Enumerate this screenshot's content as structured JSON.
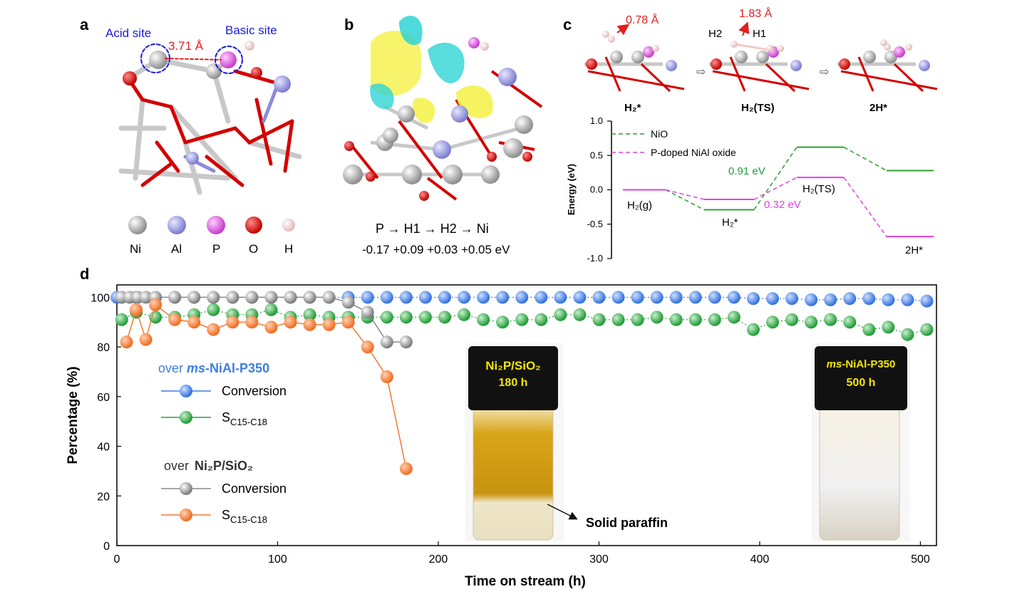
{
  "panels": {
    "a": {
      "letter": "a",
      "acid_site": "Acid site",
      "basic_site": "Basic site",
      "distance": "3.71 Å",
      "legend": [
        "Ni",
        "Al",
        "P",
        "O",
        "H"
      ],
      "legend_colors": [
        "#9a9a9a",
        "#8c8cd8",
        "#d24fd8",
        "#d40000",
        "#f2c9c9"
      ]
    },
    "b": {
      "letter": "b",
      "path": "P → H1 → H2 → Ni",
      "charges": "-0.17 +0.09 +0.03 +0.05 eV"
    },
    "c": {
      "letter": "c",
      "dist1": "0.78 Å",
      "dist2": "1.83 Å",
      "h2_label": "H2",
      "h1_label": "H1",
      "states": [
        "H₂*",
        "H₂(TS)",
        "2H*"
      ],
      "ylabel": "Energy (eV)",
      "yticks": [
        "1.0",
        "0.5",
        "0.0",
        "-0.5",
        "-1.0"
      ],
      "legend": [
        "NiO",
        "P-doped NiAl oxide"
      ],
      "barrier_nio": "0.91 eV",
      "barrier_p": "0.32 eV",
      "state_labels": [
        "H₂(g)",
        "H₂*",
        "H₂(TS)",
        "2H*"
      ]
    },
    "d": {
      "letter": "d",
      "legend_group1": "over ms-NiAl-P350",
      "legend_group1_prefix": "over ",
      "legend_group1_name": "-NiAl-P350",
      "legend_group1_italic": "ms",
      "conversion": "Conversion",
      "selectivity": "S",
      "selectivity_sub": "C15-C18",
      "legend_group2_prefix": "over",
      "legend_group2_name": "Ni₂P/SiO₂",
      "photo1_line1": "Ni₂P/SiO₂",
      "photo1_line2": "180 h",
      "photo2_italic": "ms",
      "photo2_line1": "-NiAl-P350",
      "photo2_line2": "500 h",
      "annotation": "Solid paraffin"
    }
  },
  "chart_data": [
    {
      "panel": "c",
      "type": "line",
      "ylabel": "Energy (eV)",
      "ylim": [
        -1.0,
        1.0
      ],
      "categories": [
        "H₂(g)",
        "H₂*",
        "H₂(TS)",
        "2H*"
      ],
      "series": [
        {
          "name": "NiO",
          "values": [
            0.0,
            -0.29,
            0.62,
            0.28
          ],
          "color": "#2ca02c"
        },
        {
          "name": "P-doped NiAl oxide",
          "values": [
            0.0,
            -0.14,
            0.18,
            -0.68
          ],
          "color": "#e040e0"
        }
      ]
    },
    {
      "panel": "d",
      "type": "scatter",
      "xlabel": "Time on stream (h)",
      "ylabel": "Percentage (%)",
      "xlim": [
        0,
        510
      ],
      "ylim": [
        0,
        105
      ],
      "xticks": [
        0,
        100,
        200,
        300,
        400,
        500
      ],
      "yticks": [
        0,
        20,
        40,
        60,
        80,
        100
      ],
      "series": [
        {
          "name": "Conversion",
          "group": "ms-NiAl-P350",
          "color": "#3d7ee0",
          "x": [
            0,
            12,
            24,
            36,
            48,
            60,
            72,
            84,
            96,
            108,
            120,
            132,
            144,
            156,
            168,
            180,
            192,
            204,
            216,
            228,
            240,
            252,
            264,
            276,
            288,
            300,
            312,
            324,
            336,
            348,
            360,
            372,
            384,
            396,
            408,
            420,
            432,
            444,
            456,
            468,
            480,
            492,
            504
          ],
          "y": [
            100,
            100,
            100,
            100,
            100,
            100,
            100,
            100,
            100,
            100,
            100,
            100,
            100,
            100,
            100,
            100,
            100,
            100,
            100,
            100,
            100,
            100,
            100,
            100,
            100,
            100,
            100,
            100,
            100,
            100,
            100,
            100,
            100,
            99.5,
            99.5,
            99.5,
            99,
            99,
            99.5,
            99.5,
            99,
            99,
            98.5
          ]
        },
        {
          "name": "SC15-C18",
          "group": "ms-NiAl-P350",
          "color": "#22a03a",
          "x": [
            3,
            12,
            24,
            36,
            48,
            60,
            72,
            84,
            96,
            108,
            120,
            132,
            144,
            156,
            168,
            180,
            192,
            204,
            216,
            228,
            240,
            252,
            264,
            276,
            288,
            300,
            312,
            324,
            336,
            348,
            360,
            372,
            384,
            396,
            408,
            420,
            432,
            444,
            456,
            468,
            480,
            492,
            504
          ],
          "y": [
            91,
            94,
            92,
            92,
            93,
            95,
            93,
            93,
            95,
            92,
            93,
            92,
            92,
            92,
            92,
            92,
            92,
            92,
            93,
            91,
            90,
            91,
            91,
            93,
            93,
            91,
            91,
            91,
            92,
            91,
            91,
            91,
            92,
            87,
            90,
            91,
            90,
            91,
            90,
            87,
            88,
            85,
            87
          ]
        },
        {
          "name": "Conversion",
          "group": "Ni2P/SiO2",
          "color": "#8a8a8a",
          "x": [
            3,
            8,
            13,
            18,
            24,
            36,
            48,
            60,
            72,
            84,
            96,
            108,
            120,
            132,
            144,
            156,
            168,
            180
          ],
          "y": [
            100,
            100,
            100,
            100,
            100,
            100,
            100,
            100,
            100,
            100,
            100,
            100,
            100,
            100,
            98,
            94,
            82,
            82
          ]
        },
        {
          "name": "SC15-C18",
          "group": "Ni2P/SiO2",
          "color": "#f07a30",
          "x": [
            6,
            12,
            18,
            24,
            36,
            48,
            60,
            72,
            84,
            96,
            108,
            120,
            132,
            144,
            156,
            168,
            180
          ],
          "y": [
            82,
            95,
            83,
            97,
            91,
            90,
            87,
            90,
            90,
            88,
            90,
            89,
            89,
            90,
            80,
            68,
            31
          ]
        }
      ]
    }
  ]
}
